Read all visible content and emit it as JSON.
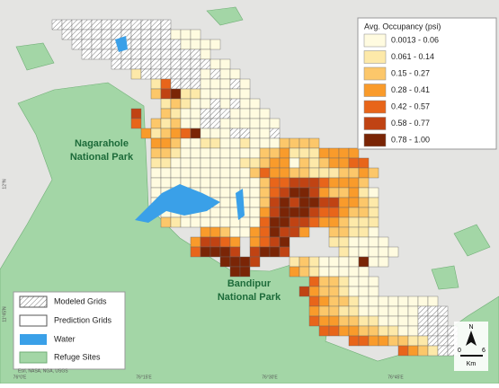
{
  "legend": {
    "title": "Avg. Occupancy (psi)",
    "classes": [
      {
        "label": "0.0013 - 0.06",
        "color": "#fffbe0"
      },
      {
        "label": "0.061 - 0.14",
        "color": "#fde9a9"
      },
      {
        "label": "0.15 - 0.27",
        "color": "#fcc76a"
      },
      {
        "label": "0.28 - 0.41",
        "color": "#f99b2b"
      },
      {
        "label": "0.42 - 0.57",
        "color": "#e8651a"
      },
      {
        "label": "0.58 - 0.77",
        "color": "#c04313"
      },
      {
        "label": "0.78 - 1.00",
        "color": "#7a2506"
      }
    ]
  },
  "layers": {
    "modeled": "Modeled Grids",
    "prediction": "Prediction Grids",
    "water": "Water",
    "refuge": "Refuge Sites"
  },
  "parks": {
    "nagarahole": [
      "Nagarahole",
      "National Park"
    ],
    "bandipur": [
      "Bandipur",
      "National Park"
    ]
  },
  "scale": {
    "north": "N",
    "start": "0",
    "end": "6",
    "unit": "Km"
  },
  "coords": {
    "x": [
      "76°0'E",
      "76°15'E",
      "76°30'E",
      "76°45'E"
    ],
    "y": [
      "12°N",
      "11°45'N"
    ]
  },
  "attribution": "Esri, NASA, NGA, USGS"
}
